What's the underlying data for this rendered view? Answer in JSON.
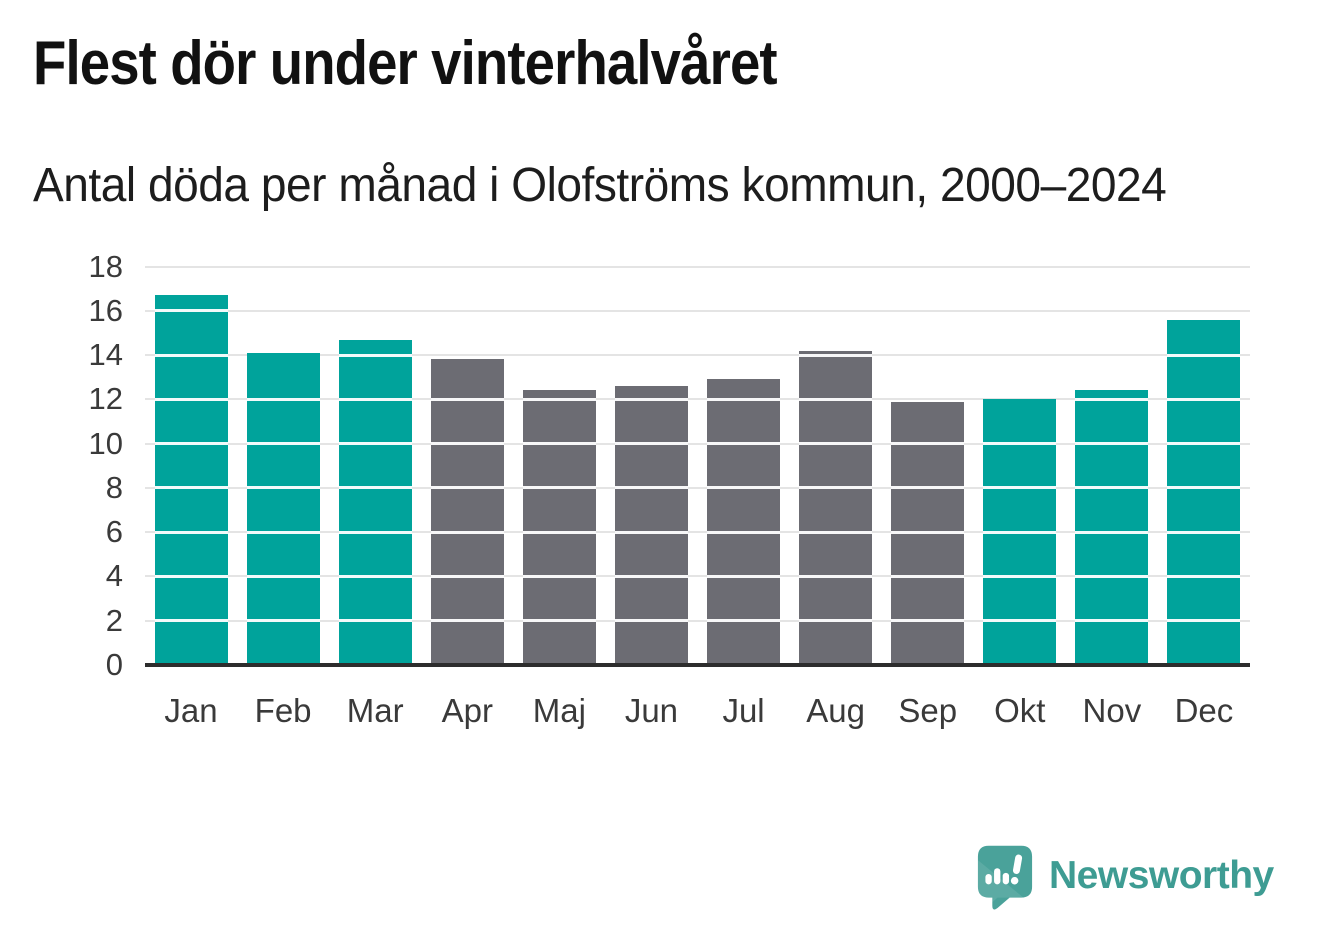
{
  "header": {
    "title": "Flest dör under vinterhalvåret",
    "subtitle": "Antal döda per månad i Olofströms kommun, 2000–2024"
  },
  "chart_data": {
    "type": "bar",
    "title": "Flest dör under vinterhalvåret",
    "subtitle": "Antal döda per månad i Olofströms kommun, 2000–2024",
    "categories": [
      "Jan",
      "Feb",
      "Mar",
      "Apr",
      "Maj",
      "Jun",
      "Jul",
      "Aug",
      "Sep",
      "Okt",
      "Nov",
      "Dec"
    ],
    "values": [
      16.7,
      14.1,
      14.7,
      13.8,
      12.4,
      12.6,
      12.9,
      14.2,
      11.9,
      12.0,
      12.4,
      15.6
    ],
    "highlighted": [
      true,
      true,
      true,
      false,
      false,
      false,
      false,
      false,
      false,
      true,
      true,
      true
    ],
    "colors": {
      "highlight": "#00A39B",
      "default": "#6C6C73"
    },
    "xlabel": "",
    "ylabel": "",
    "ylim": [
      0,
      18
    ],
    "yticks": [
      0,
      2,
      4,
      6,
      8,
      10,
      12,
      14,
      16,
      18
    ],
    "grid": true,
    "legend": "none"
  },
  "footer": {
    "logo_text": "Newsworthy",
    "logo_icon": "speech-bubble-with-bar-chart-and-exclamation",
    "logo_color": "#3E9C93"
  }
}
